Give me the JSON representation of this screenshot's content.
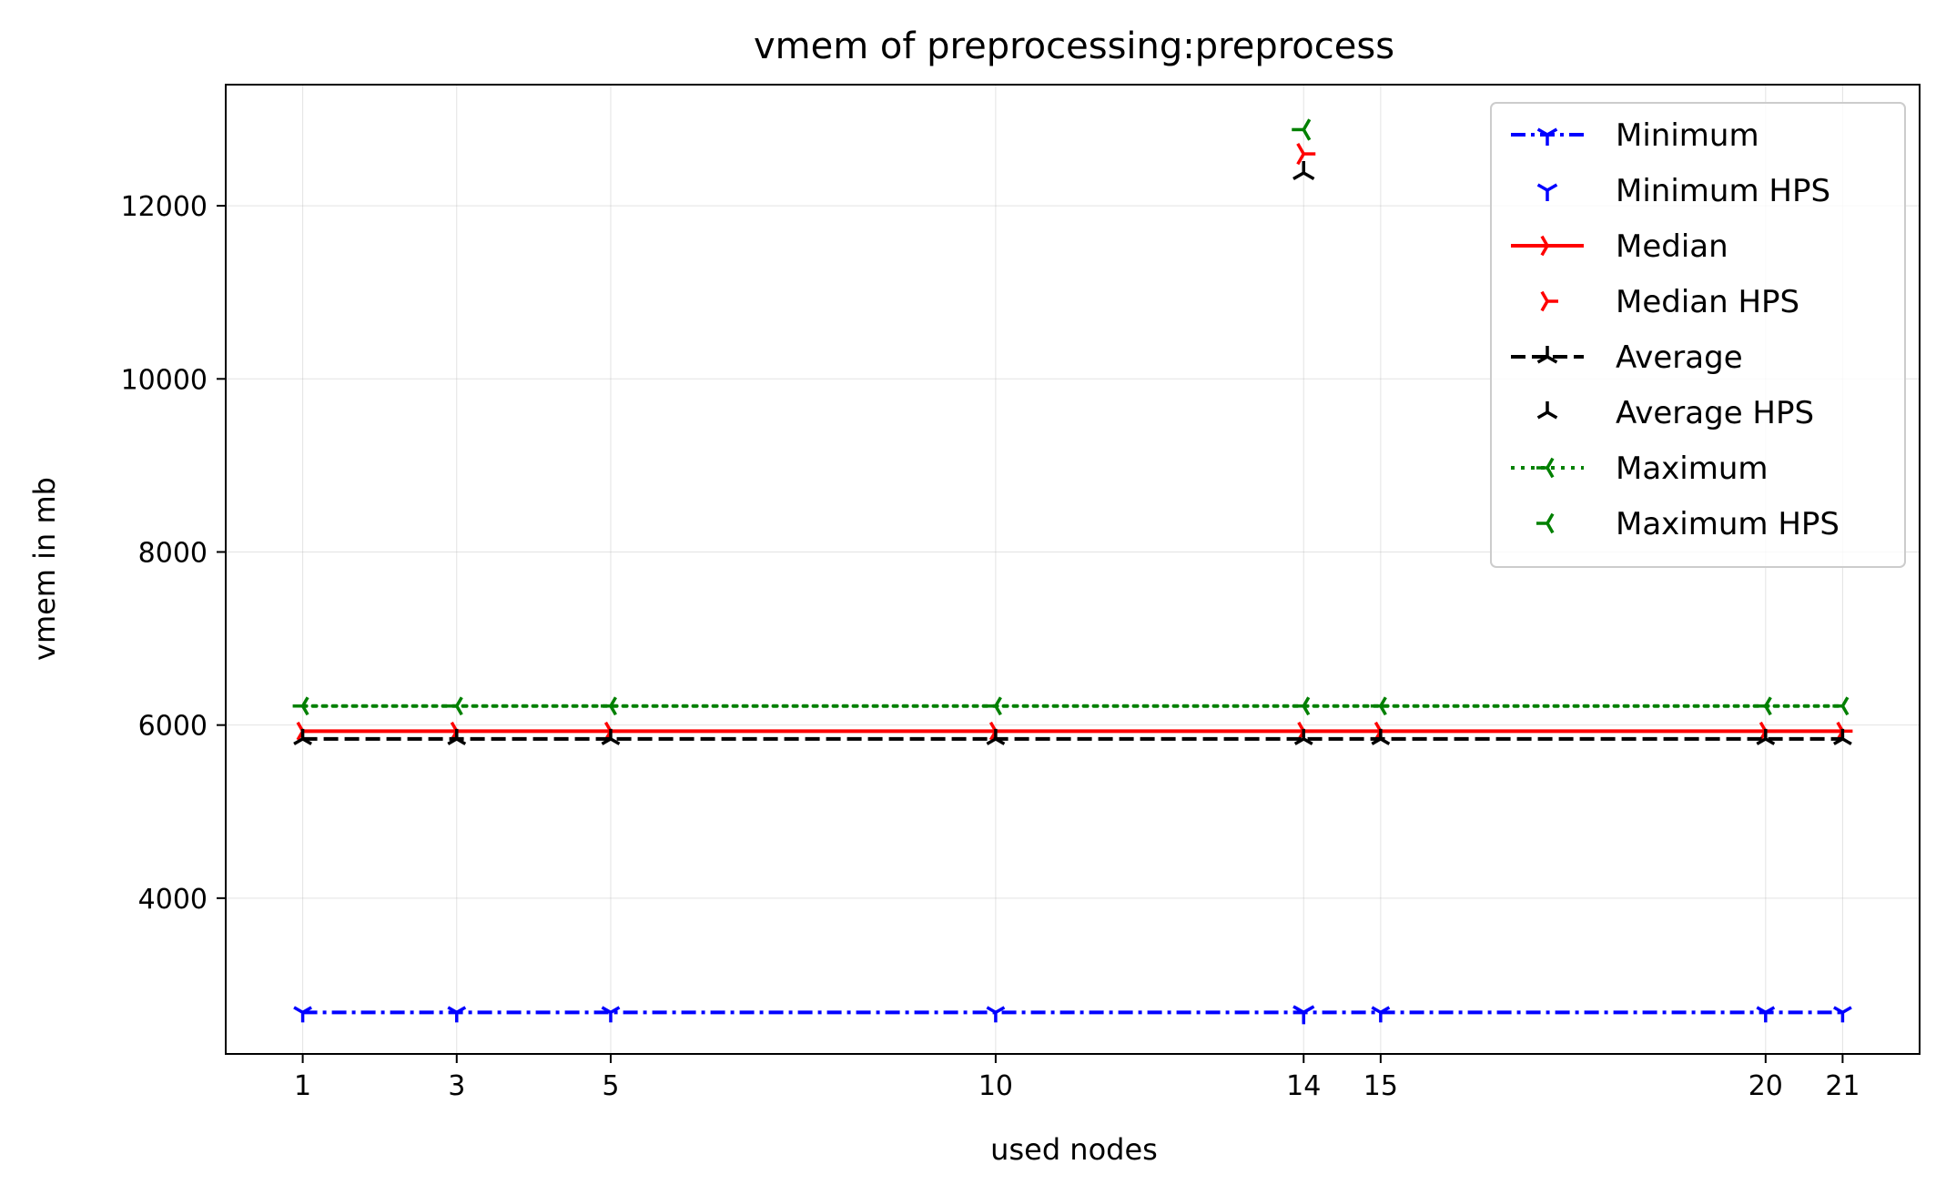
{
  "chart_data": {
    "type": "line",
    "title": "vmem of preprocessing:preprocess",
    "xlabel": "used nodes",
    "ylabel": "vmem in mb",
    "x": [
      1,
      3,
      5,
      10,
      14,
      15,
      20,
      21
    ],
    "xticks": [
      "1",
      "3",
      "5",
      "10",
      "14",
      "15",
      "20",
      "21"
    ],
    "yticks": [
      4000,
      6000,
      8000,
      10000,
      12000
    ],
    "ytick_labels": [
      "4000",
      "6000",
      "8000",
      "10000",
      "12000"
    ],
    "xlim": [
      0,
      22
    ],
    "ylim": [
      2200,
      13400
    ],
    "grid": true,
    "legend_position": "upper-right",
    "series": [
      {
        "name": "Minimum",
        "color": "#0000ff",
        "style": "dashdot",
        "marker": "tri-down",
        "values": [
          2680,
          2680,
          2680,
          2680,
          2680,
          2680,
          2680,
          2680
        ]
      },
      {
        "name": "Median",
        "color": "#ff0000",
        "style": "solid",
        "marker": "tri-right",
        "values": [
          5930,
          5930,
          5930,
          5930,
          5930,
          5930,
          5930,
          5930
        ]
      },
      {
        "name": "Average",
        "color": "#000000",
        "style": "dashed",
        "marker": "tri-up",
        "values": [
          5840,
          5840,
          5840,
          5840,
          5840,
          5840,
          5840,
          5840
        ]
      },
      {
        "name": "Maximum",
        "color": "#008000",
        "style": "dotted",
        "marker": "tri-left",
        "values": [
          6220,
          6220,
          6220,
          6220,
          6220,
          6220,
          6220,
          6220
        ]
      }
    ],
    "hps_points": [
      {
        "name": "Minimum HPS",
        "color": "#0000ff",
        "marker": "tri-down",
        "x": 14,
        "y": 2680
      },
      {
        "name": "Median HPS",
        "color": "#ff0000",
        "marker": "tri-right",
        "x": 14,
        "y": 12600
      },
      {
        "name": "Average HPS",
        "color": "#000000",
        "marker": "tri-up",
        "x": 14,
        "y": 12380
      },
      {
        "name": "Maximum HPS",
        "color": "#008000",
        "marker": "tri-left",
        "x": 14,
        "y": 12880
      }
    ],
    "legend": [
      {
        "name": "Minimum",
        "color": "#0000ff",
        "style": "dashdot",
        "marker": "tri-down"
      },
      {
        "name": "Minimum HPS",
        "color": "#0000ff",
        "style": "none",
        "marker": "tri-down"
      },
      {
        "name": "Median",
        "color": "#ff0000",
        "style": "solid",
        "marker": "tri-right"
      },
      {
        "name": "Median HPS",
        "color": "#ff0000",
        "style": "none",
        "marker": "tri-right"
      },
      {
        "name": "Average",
        "color": "#000000",
        "style": "dashed",
        "marker": "tri-up"
      },
      {
        "name": "Average HPS",
        "color": "#000000",
        "style": "none",
        "marker": "tri-up"
      },
      {
        "name": "Maximum",
        "color": "#008000",
        "style": "dotted",
        "marker": "tri-left"
      },
      {
        "name": "Maximum HPS",
        "color": "#008000",
        "style": "none",
        "marker": "tri-left"
      }
    ]
  }
}
